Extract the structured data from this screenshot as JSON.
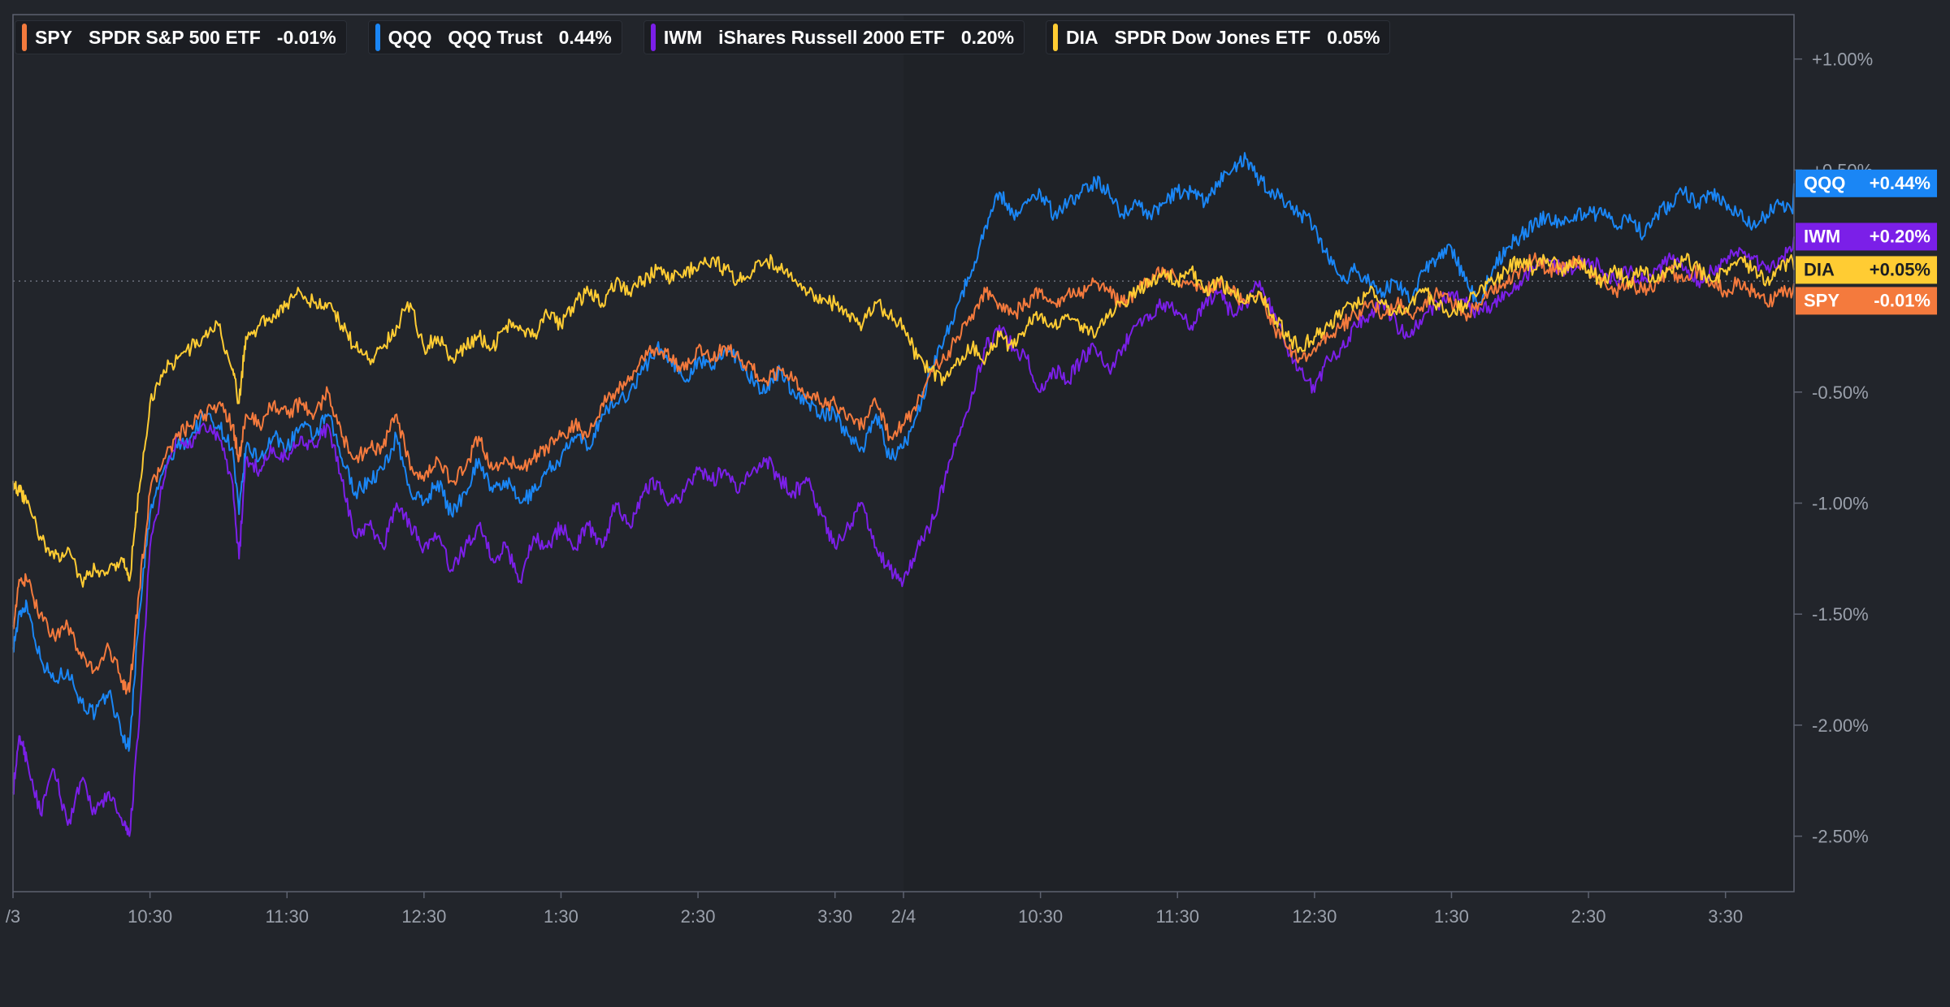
{
  "chart_data": {
    "type": "line",
    "title": "",
    "xlabel": "",
    "ylabel": "",
    "ylim": [
      -2.75,
      1.2
    ],
    "y_ticks": [
      1.0,
      0.5,
      -0.5,
      -1.0,
      -1.5,
      -2.0,
      -2.5
    ],
    "y_tick_labels": [
      "+1.00%",
      "+0.50%",
      "-0.50%",
      "-1.00%",
      "-1.50%",
      "-2.00%",
      "-2.50%"
    ],
    "x_ticks": [
      {
        "t": 0,
        "label": "/3"
      },
      {
        "t": 1.0,
        "label": "10:30"
      },
      {
        "t": 2.0,
        "label": "11:30"
      },
      {
        "t": 3.0,
        "label": "12:30"
      },
      {
        "t": 4.0,
        "label": "1:30"
      },
      {
        "t": 5.0,
        "label": "2:30"
      },
      {
        "t": 6.0,
        "label": "3:30"
      },
      {
        "t": 6.5,
        "label": "2/4"
      },
      {
        "t": 7.5,
        "label": "10:30"
      },
      {
        "t": 8.5,
        "label": "11:30"
      },
      {
        "t": 9.5,
        "label": "12:30"
      },
      {
        "t": 10.5,
        "label": "1:30"
      },
      {
        "t": 11.5,
        "label": "2:30"
      },
      {
        "t": 12.5,
        "label": "3:30"
      }
    ],
    "x_range": [
      0,
      13.0
    ],
    "session_break": 6.5,
    "series": [
      {
        "symbol": "QQQ",
        "name": "QQQ Trust",
        "color": "#1a86f5",
        "last": "0.44%",
        "tag": "+0.44%",
        "t": [
          0,
          0.05,
          0.1,
          0.2,
          0.3,
          0.4,
          0.5,
          0.6,
          0.7,
          0.8,
          0.85,
          0.92,
          1.0,
          1.1,
          1.2,
          1.3,
          1.4,
          1.5,
          1.6,
          1.65,
          1.7,
          1.8,
          1.9,
          2.0,
          2.1,
          2.2,
          2.3,
          2.4,
          2.5,
          2.6,
          2.7,
          2.8,
          2.9,
          3.0,
          3.1,
          3.2,
          3.3,
          3.4,
          3.5,
          3.6,
          3.7,
          3.8,
          3.9,
          4.0,
          4.1,
          4.2,
          4.3,
          4.4,
          4.5,
          4.6,
          4.7,
          4.8,
          4.9,
          5.0,
          5.1,
          5.2,
          5.3,
          5.4,
          5.5,
          5.6,
          5.7,
          5.8,
          5.9,
          6.0,
          6.1,
          6.2,
          6.3,
          6.4,
          6.5,
          6.6,
          6.7,
          6.8,
          6.9,
          7.0,
          7.1,
          7.2,
          7.3,
          7.4,
          7.5,
          7.6,
          7.7,
          7.8,
          7.9,
          8.0,
          8.1,
          8.2,
          8.3,
          8.4,
          8.5,
          8.6,
          8.7,
          8.8,
          8.9,
          9.0,
          9.1,
          9.2,
          9.3,
          9.4,
          9.5,
          9.6,
          9.7,
          9.8,
          9.9,
          10.0,
          10.1,
          10.2,
          10.3,
          10.4,
          10.5,
          10.6,
          10.7,
          10.8,
          10.9,
          11.0,
          11.1,
          11.2,
          11.3,
          11.4,
          11.5,
          11.6,
          11.7,
          11.8,
          11.9,
          12.0,
          12.1,
          12.2,
          12.3,
          12.4,
          12.5,
          12.6,
          12.7,
          12.8,
          12.9,
          13.0
        ],
        "v": [
          -1.65,
          -1.5,
          -1.45,
          -1.7,
          -1.8,
          -1.75,
          -1.9,
          -1.95,
          -1.85,
          -2.05,
          -2.1,
          -1.5,
          -1.05,
          -0.85,
          -0.75,
          -0.7,
          -0.6,
          -0.65,
          -0.75,
          -1.05,
          -0.75,
          -0.8,
          -0.7,
          -0.75,
          -0.65,
          -0.7,
          -0.6,
          -0.8,
          -0.95,
          -0.9,
          -0.85,
          -0.7,
          -0.95,
          -1.0,
          -0.9,
          -1.05,
          -0.95,
          -0.8,
          -0.95,
          -0.9,
          -1.0,
          -0.95,
          -0.85,
          -0.8,
          -0.7,
          -0.75,
          -0.6,
          -0.55,
          -0.5,
          -0.4,
          -0.3,
          -0.35,
          -0.45,
          -0.35,
          -0.4,
          -0.3,
          -0.35,
          -0.45,
          -0.5,
          -0.4,
          -0.5,
          -0.55,
          -0.6,
          -0.6,
          -0.7,
          -0.75,
          -0.6,
          -0.8,
          -0.75,
          -0.6,
          -0.4,
          -0.25,
          -0.1,
          0.05,
          0.25,
          0.4,
          0.3,
          0.35,
          0.4,
          0.3,
          0.35,
          0.4,
          0.45,
          0.4,
          0.3,
          0.35,
          0.3,
          0.35,
          0.4,
          0.4,
          0.35,
          0.45,
          0.5,
          0.55,
          0.45,
          0.4,
          0.35,
          0.3,
          0.25,
          0.1,
          0.0,
          0.05,
          0.0,
          -0.05,
          0.0,
          -0.1,
          0.05,
          0.1,
          0.15,
          0.0,
          -0.1,
          0.05,
          0.15,
          0.2,
          0.25,
          0.3,
          0.25,
          0.3,
          0.3,
          0.3,
          0.25,
          0.3,
          0.2,
          0.3,
          0.35,
          0.4,
          0.35,
          0.4,
          0.35,
          0.3,
          0.25,
          0.3,
          0.35,
          0.3,
          0.25,
          0.35,
          0.3,
          0.35,
          0.45,
          0.44
        ]
      },
      {
        "symbol": "IWM",
        "name": "iShares Russell 2000 ETF",
        "color": "#7b1fe8",
        "last": "0.20%",
        "tag": "+0.20%",
        "t": [
          0,
          0.05,
          0.1,
          0.2,
          0.3,
          0.4,
          0.5,
          0.6,
          0.7,
          0.8,
          0.85,
          0.92,
          1.0,
          1.1,
          1.2,
          1.3,
          1.4,
          1.5,
          1.6,
          1.65,
          1.7,
          1.8,
          1.9,
          2.0,
          2.1,
          2.2,
          2.3,
          2.4,
          2.5,
          2.6,
          2.7,
          2.8,
          2.9,
          3.0,
          3.1,
          3.2,
          3.3,
          3.4,
          3.5,
          3.6,
          3.7,
          3.8,
          3.9,
          4.0,
          4.1,
          4.2,
          4.3,
          4.4,
          4.5,
          4.6,
          4.7,
          4.8,
          4.9,
          5.0,
          5.1,
          5.2,
          5.3,
          5.4,
          5.5,
          5.6,
          5.7,
          5.8,
          5.9,
          6.0,
          6.1,
          6.2,
          6.3,
          6.4,
          6.5,
          6.6,
          6.7,
          6.8,
          6.9,
          7.0,
          7.1,
          7.2,
          7.3,
          7.4,
          7.5,
          7.6,
          7.7,
          7.8,
          7.9,
          8.0,
          8.1,
          8.2,
          8.3,
          8.4,
          8.5,
          8.6,
          8.7,
          8.8,
          8.9,
          9.0,
          9.1,
          9.2,
          9.3,
          9.4,
          9.5,
          9.6,
          9.7,
          9.8,
          9.9,
          10.0,
          10.1,
          10.2,
          10.3,
          10.4,
          10.5,
          10.6,
          10.7,
          10.8,
          10.9,
          11.0,
          11.1,
          11.2,
          11.3,
          11.4,
          11.5,
          11.6,
          11.7,
          11.8,
          11.9,
          12.0,
          12.1,
          12.2,
          12.3,
          12.4,
          12.5,
          12.6,
          12.7,
          12.8,
          12.9,
          13.0
        ],
        "v": [
          -2.3,
          -2.05,
          -2.15,
          -2.4,
          -2.2,
          -2.45,
          -2.25,
          -2.4,
          -2.3,
          -2.45,
          -2.5,
          -2.0,
          -1.2,
          -0.9,
          -0.7,
          -0.75,
          -0.65,
          -0.7,
          -0.9,
          -1.25,
          -0.8,
          -0.85,
          -0.75,
          -0.8,
          -0.7,
          -0.75,
          -0.65,
          -0.9,
          -1.15,
          -1.1,
          -1.2,
          -1.0,
          -1.1,
          -1.2,
          -1.15,
          -1.3,
          -1.2,
          -1.1,
          -1.25,
          -1.2,
          -1.35,
          -1.15,
          -1.2,
          -1.1,
          -1.2,
          -1.1,
          -1.2,
          -1.0,
          -1.1,
          -0.95,
          -0.9,
          -1.0,
          -0.95,
          -0.85,
          -0.9,
          -0.85,
          -0.95,
          -0.85,
          -0.8,
          -0.9,
          -0.95,
          -0.9,
          -1.05,
          -1.2,
          -1.1,
          -1.0,
          -1.2,
          -1.3,
          -1.35,
          -1.2,
          -1.1,
          -0.9,
          -0.7,
          -0.5,
          -0.3,
          -0.2,
          -0.3,
          -0.35,
          -0.5,
          -0.4,
          -0.45,
          -0.35,
          -0.3,
          -0.4,
          -0.3,
          -0.2,
          -0.15,
          -0.1,
          -0.15,
          -0.2,
          -0.1,
          -0.05,
          -0.15,
          -0.1,
          0.0,
          -0.15,
          -0.3,
          -0.4,
          -0.5,
          -0.35,
          -0.3,
          -0.2,
          -0.15,
          -0.1,
          -0.2,
          -0.25,
          -0.15,
          -0.1,
          -0.05,
          -0.1,
          -0.15,
          -0.1,
          -0.05,
          0.0,
          0.05,
          0.1,
          0.05,
          0.05,
          0.1,
          0.05,
          0.0,
          0.05,
          0.0,
          0.05,
          0.1,
          0.05,
          0.0,
          0.05,
          0.1,
          0.15,
          0.1,
          0.05,
          0.1,
          0.15,
          0.2,
          0.25,
          0.3,
          0.25,
          0.3,
          0.2
        ]
      },
      {
        "symbol": "SPY",
        "name": "SPDR S&P 500 ETF",
        "color": "#f47a3d",
        "last": "-0.01%",
        "tag": "-0.01%",
        "t": [
          0,
          0.05,
          0.1,
          0.2,
          0.3,
          0.4,
          0.5,
          0.6,
          0.7,
          0.8,
          0.85,
          0.92,
          1.0,
          1.1,
          1.2,
          1.3,
          1.4,
          1.5,
          1.6,
          1.65,
          1.7,
          1.8,
          1.9,
          2.0,
          2.1,
          2.2,
          2.3,
          2.4,
          2.5,
          2.6,
          2.7,
          2.8,
          2.9,
          3.0,
          3.1,
          3.2,
          3.3,
          3.4,
          3.5,
          3.6,
          3.7,
          3.8,
          3.9,
          4.0,
          4.1,
          4.2,
          4.3,
          4.4,
          4.5,
          4.6,
          4.7,
          4.8,
          4.9,
          5.0,
          5.1,
          5.2,
          5.3,
          5.4,
          5.5,
          5.6,
          5.7,
          5.8,
          5.9,
          6.0,
          6.1,
          6.2,
          6.3,
          6.4,
          6.5,
          6.6,
          6.7,
          6.8,
          6.9,
          7.0,
          7.1,
          7.2,
          7.3,
          7.4,
          7.5,
          7.6,
          7.7,
          7.8,
          7.9,
          8.0,
          8.1,
          8.2,
          8.3,
          8.4,
          8.5,
          8.6,
          8.7,
          8.8,
          8.9,
          9.0,
          9.1,
          9.2,
          9.3,
          9.4,
          9.5,
          9.6,
          9.7,
          9.8,
          9.9,
          10.0,
          10.1,
          10.2,
          10.3,
          10.4,
          10.5,
          10.6,
          10.7,
          10.8,
          10.9,
          11.0,
          11.1,
          11.2,
          11.3,
          11.4,
          11.5,
          11.6,
          11.7,
          11.8,
          11.9,
          12.0,
          12.1,
          12.2,
          12.3,
          12.4,
          12.5,
          12.6,
          12.7,
          12.8,
          12.9,
          13.0
        ],
        "v": [
          -1.55,
          -1.35,
          -1.35,
          -1.5,
          -1.6,
          -1.55,
          -1.7,
          -1.75,
          -1.65,
          -1.8,
          -1.85,
          -1.4,
          -0.95,
          -0.8,
          -0.7,
          -0.65,
          -0.6,
          -0.55,
          -0.65,
          -0.8,
          -0.6,
          -0.65,
          -0.55,
          -0.6,
          -0.55,
          -0.6,
          -0.5,
          -0.7,
          -0.8,
          -0.75,
          -0.75,
          -0.6,
          -0.85,
          -0.9,
          -0.8,
          -0.9,
          -0.85,
          -0.7,
          -0.85,
          -0.8,
          -0.85,
          -0.8,
          -0.75,
          -0.7,
          -0.65,
          -0.7,
          -0.55,
          -0.5,
          -0.45,
          -0.35,
          -0.3,
          -0.35,
          -0.4,
          -0.3,
          -0.35,
          -0.3,
          -0.35,
          -0.4,
          -0.45,
          -0.4,
          -0.45,
          -0.5,
          -0.55,
          -0.55,
          -0.6,
          -0.65,
          -0.55,
          -0.7,
          -0.65,
          -0.55,
          -0.4,
          -0.35,
          -0.25,
          -0.15,
          -0.05,
          -0.1,
          -0.15,
          -0.1,
          -0.05,
          -0.1,
          -0.05,
          -0.05,
          0.0,
          -0.05,
          -0.1,
          -0.05,
          0.0,
          0.05,
          0.0,
          0.0,
          -0.05,
          0.0,
          -0.05,
          -0.1,
          -0.05,
          -0.2,
          -0.3,
          -0.35,
          -0.3,
          -0.25,
          -0.2,
          -0.15,
          -0.1,
          -0.15,
          -0.1,
          -0.15,
          -0.1,
          -0.05,
          -0.1,
          -0.15,
          -0.1,
          -0.05,
          0.0,
          0.05,
          0.1,
          0.05,
          0.05,
          0.1,
          0.05,
          0.0,
          -0.05,
          0.0,
          -0.05,
          0.0,
          0.05,
          0.0,
          0.05,
          0.0,
          -0.05,
          0.0,
          -0.05,
          -0.1,
          -0.05,
          -0.05,
          -0.02,
          -0.01
        ]
      },
      {
        "symbol": "DIA",
        "name": "SPDR Dow Jones ETF",
        "color": "#ffcc33",
        "last": "0.05%",
        "tag": "+0.05%",
        "t": [
          0,
          0.05,
          0.1,
          0.2,
          0.3,
          0.4,
          0.5,
          0.6,
          0.7,
          0.8,
          0.85,
          0.92,
          1.0,
          1.1,
          1.2,
          1.3,
          1.4,
          1.5,
          1.6,
          1.65,
          1.7,
          1.8,
          1.9,
          2.0,
          2.1,
          2.2,
          2.3,
          2.4,
          2.5,
          2.6,
          2.7,
          2.8,
          2.9,
          3.0,
          3.1,
          3.2,
          3.3,
          3.4,
          3.5,
          3.6,
          3.7,
          3.8,
          3.9,
          4.0,
          4.1,
          4.2,
          4.3,
          4.4,
          4.5,
          4.6,
          4.7,
          4.8,
          4.9,
          5.0,
          5.1,
          5.2,
          5.3,
          5.4,
          5.5,
          5.6,
          5.7,
          5.8,
          5.9,
          6.0,
          6.1,
          6.2,
          6.3,
          6.4,
          6.5,
          6.6,
          6.7,
          6.8,
          6.9,
          7.0,
          7.1,
          7.2,
          7.3,
          7.4,
          7.5,
          7.6,
          7.7,
          7.8,
          7.9,
          8.0,
          8.1,
          8.2,
          8.3,
          8.4,
          8.5,
          8.6,
          8.7,
          8.8,
          8.9,
          9.0,
          9.1,
          9.2,
          9.3,
          9.4,
          9.5,
          9.6,
          9.7,
          9.8,
          9.9,
          10.0,
          10.1,
          10.2,
          10.3,
          10.4,
          10.5,
          10.6,
          10.7,
          10.8,
          10.9,
          11.0,
          11.1,
          11.2,
          11.3,
          11.4,
          11.5,
          11.6,
          11.7,
          11.8,
          11.9,
          12.0,
          12.1,
          12.2,
          12.3,
          12.4,
          12.5,
          12.6,
          12.7,
          12.8,
          12.9,
          13.0
        ],
        "v": [
          -0.9,
          -0.95,
          -1.0,
          -1.15,
          -1.25,
          -1.2,
          -1.35,
          -1.3,
          -1.3,
          -1.25,
          -1.35,
          -0.95,
          -0.55,
          -0.4,
          -0.35,
          -0.3,
          -0.25,
          -0.2,
          -0.4,
          -0.55,
          -0.25,
          -0.2,
          -0.15,
          -0.1,
          -0.05,
          -0.1,
          -0.1,
          -0.2,
          -0.3,
          -0.35,
          -0.3,
          -0.2,
          -0.1,
          -0.3,
          -0.25,
          -0.35,
          -0.3,
          -0.25,
          -0.3,
          -0.2,
          -0.2,
          -0.25,
          -0.15,
          -0.2,
          -0.1,
          -0.05,
          -0.1,
          0.0,
          -0.05,
          0.0,
          0.05,
          0.0,
          0.05,
          0.05,
          0.1,
          0.05,
          0.0,
          0.05,
          0.1,
          0.05,
          0.0,
          -0.05,
          -0.1,
          -0.1,
          -0.15,
          -0.2,
          -0.1,
          -0.15,
          -0.2,
          -0.35,
          -0.4,
          -0.45,
          -0.35,
          -0.3,
          -0.35,
          -0.25,
          -0.3,
          -0.2,
          -0.15,
          -0.2,
          -0.15,
          -0.2,
          -0.25,
          -0.15,
          -0.1,
          -0.05,
          0.0,
          0.05,
          0.0,
          0.05,
          -0.05,
          0.0,
          -0.05,
          -0.1,
          -0.05,
          -0.15,
          -0.25,
          -0.3,
          -0.25,
          -0.2,
          -0.15,
          -0.1,
          -0.05,
          -0.1,
          -0.15,
          -0.1,
          -0.05,
          -0.1,
          -0.15,
          -0.1,
          -0.05,
          0.0,
          0.05,
          0.1,
          0.05,
          0.1,
          0.05,
          0.1,
          0.05,
          0.0,
          0.05,
          0.0,
          0.05,
          0.0,
          0.05,
          0.1,
          0.05,
          0.0,
          0.05,
          0.1,
          0.05,
          0.0,
          0.05,
          0.1,
          0.05,
          0.05
        ]
      }
    ],
    "legend": [
      {
        "symbol": "SPY",
        "name": "SPDR S&P 500 ETF",
        "value": "-0.01%",
        "color": "#f47a3d"
      },
      {
        "symbol": "QQQ",
        "name": "QQQ Trust",
        "value": "0.44%",
        "color": "#1a86f5"
      },
      {
        "symbol": "IWM",
        "name": "iShares Russell 2000 ETF",
        "value": "0.20%",
        "color": "#7b1fe8"
      },
      {
        "symbol": "DIA",
        "name": "SPDR Dow Jones ETF",
        "value": "0.05%",
        "color": "#ffcc33"
      }
    ],
    "end_tags_order": [
      "QQQ",
      "IWM",
      "DIA",
      "SPY"
    ]
  }
}
